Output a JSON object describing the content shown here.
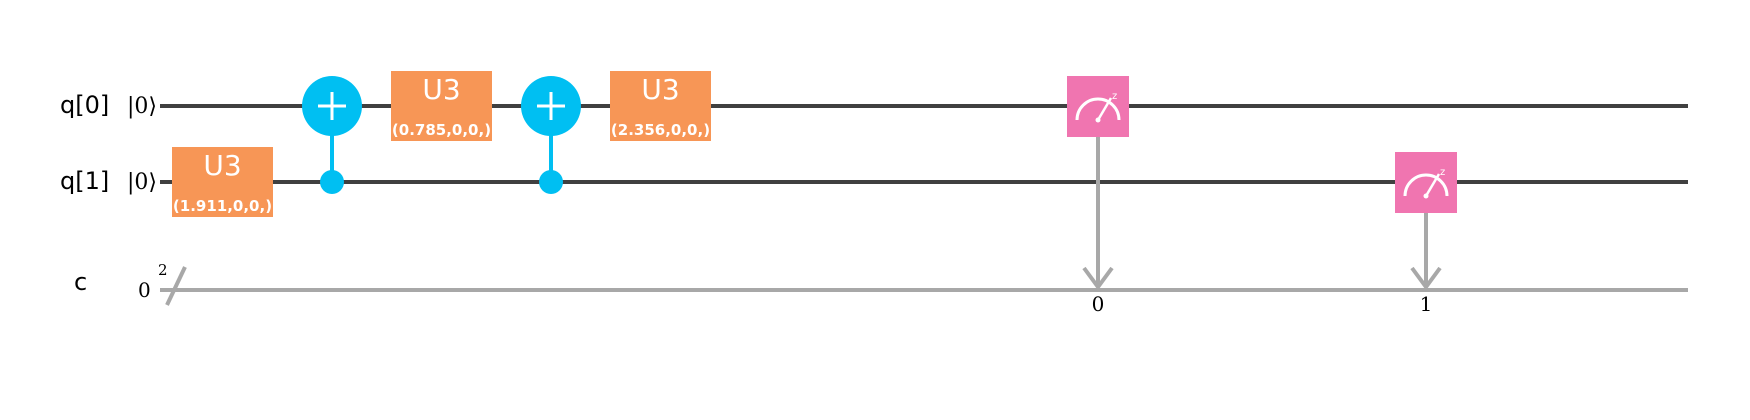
{
  "circuit": {
    "qubits": [
      {
        "label": "q[0]",
        "init": "|0⟩"
      },
      {
        "label": "q[1]",
        "init": "|0⟩"
      }
    ],
    "classical": {
      "label": "c",
      "init": "0",
      "width": "2"
    },
    "gates": [
      {
        "name": "U3",
        "param": "(1.911,0,0,)",
        "qubit": "q[1]"
      },
      {
        "name": "CNOT",
        "control": "q[1]",
        "target": "q[0]"
      },
      {
        "name": "U3",
        "param": "(0.785,0,0,)",
        "qubit": "q[0]"
      },
      {
        "name": "CNOT",
        "control": "q[1]",
        "target": "q[0]"
      },
      {
        "name": "U3",
        "param": "(2.356,0,0,)",
        "qubit": "q[0]"
      },
      {
        "name": "measure",
        "qubit": "q[0]",
        "bit": "0"
      },
      {
        "name": "measure",
        "qubit": "q[1]",
        "bit": "1"
      }
    ],
    "colors": {
      "u3": "#f79656",
      "cnot": "#00bff2",
      "measure": "#f075b0",
      "quantum_wire": "#404040",
      "classical_wire": "#a8a8a8"
    }
  }
}
